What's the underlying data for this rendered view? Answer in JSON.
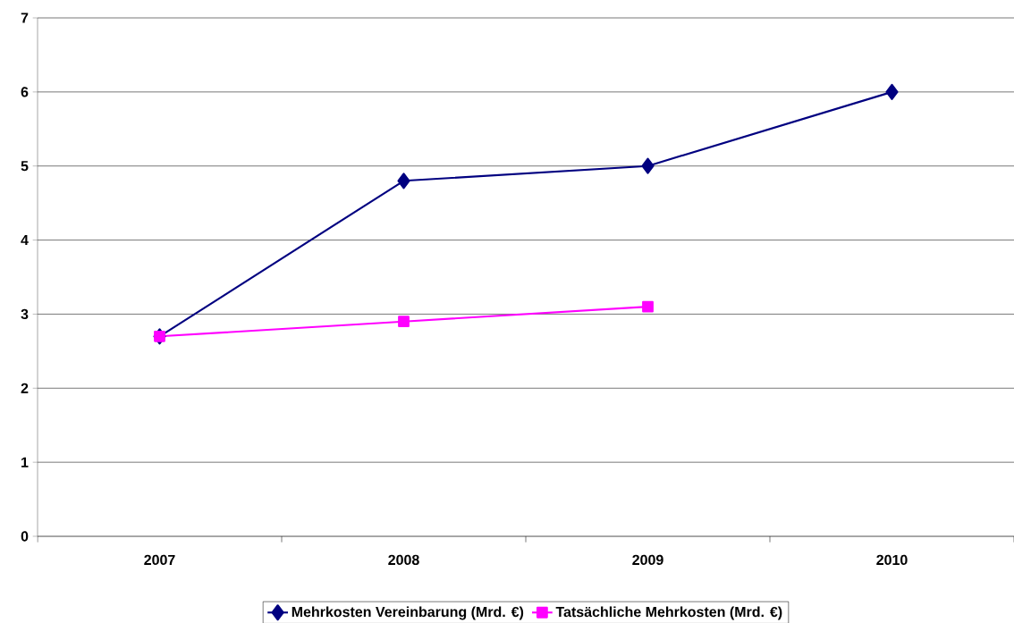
{
  "chart_data": {
    "type": "line",
    "categories": [
      "2007",
      "2008",
      "2009",
      "2010"
    ],
    "series": [
      {
        "name": "Mehrkosten Vereinbarung (Mrd. €)",
        "color": "#000080",
        "marker": "diamond",
        "values": [
          2.7,
          4.8,
          5.0,
          6.0
        ]
      },
      {
        "name": "Tatsächliche Mehrkosten (Mrd. €)",
        "color": "#ff00ff",
        "marker": "square",
        "values": [
          2.7,
          2.9,
          3.1,
          null
        ]
      }
    ],
    "ylim": [
      0,
      7
    ],
    "yticks": [
      0,
      1,
      2,
      3,
      4,
      5,
      6,
      7
    ],
    "grid": "y",
    "legend": "bottom",
    "line_style": "solid"
  }
}
